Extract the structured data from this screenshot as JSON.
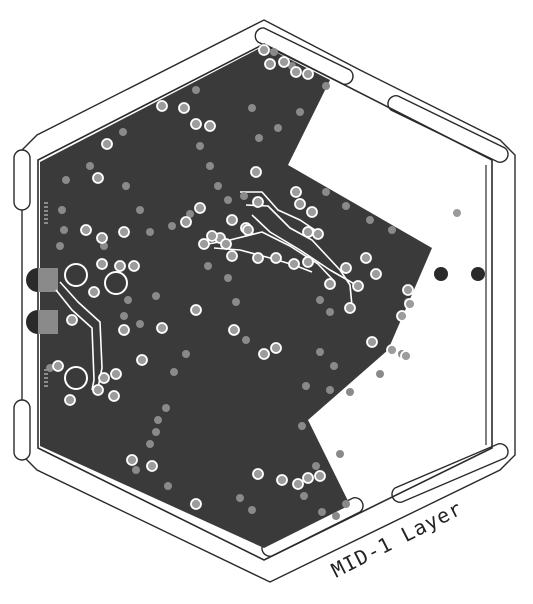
{
  "layer_label": "MID-1 Layer",
  "colors": {
    "background": "#ffffff",
    "copper_pour": "#3a3a3a",
    "outline": "#1a1a1a",
    "pad_ring": "#ffffff",
    "pad_fill": "#9c9c9c",
    "via_fill": "#8a8a8a",
    "trace": "#ffffff",
    "mount_hole": "#222222"
  },
  "element_counts_note": ""
}
